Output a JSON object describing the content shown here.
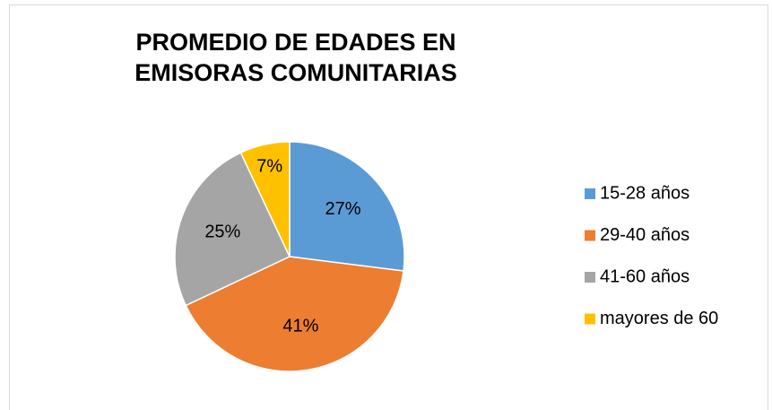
{
  "chart_data": {
    "type": "pie",
    "title": "PROMEDIO DE EDADES EN EMISORAS COMUNITARIAS",
    "categories": [
      "15-28 años",
      "29-40 años",
      "41-60 años",
      "mayores de 60"
    ],
    "values": [
      27,
      41,
      25,
      7
    ],
    "value_labels": [
      "27%",
      "41%",
      "25%",
      "7%"
    ],
    "colors": [
      "#5b9bd5",
      "#ed7d31",
      "#a5a5a5",
      "#ffc000"
    ],
    "legend": "right"
  }
}
